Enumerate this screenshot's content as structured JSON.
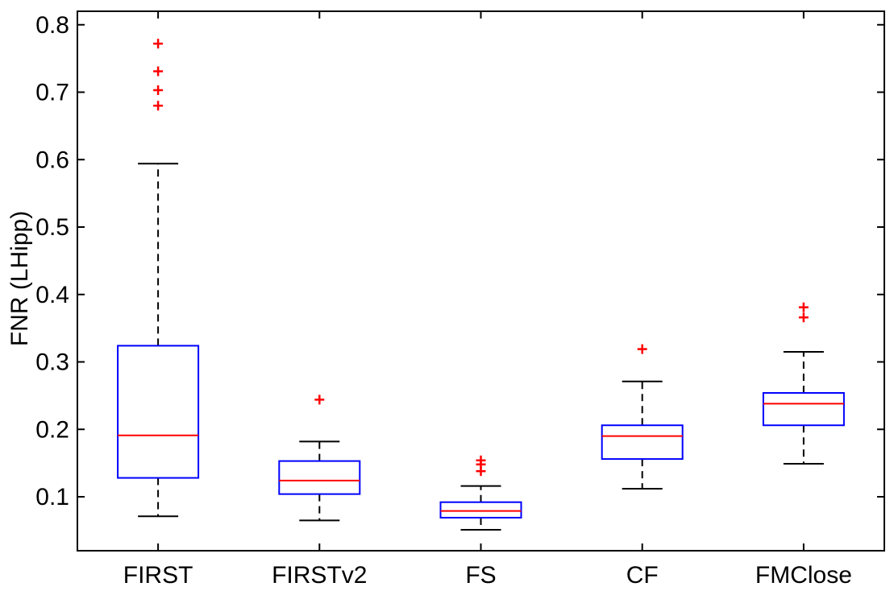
{
  "chart_data": {
    "type": "boxplot",
    "title": "",
    "xlabel": "",
    "ylabel": "FNR (LHipp)",
    "ylim": [
      0.02,
      0.82
    ],
    "yticks": [
      0.1,
      0.2,
      0.3,
      0.4,
      0.5,
      0.6,
      0.7,
      0.8
    ],
    "ytick_labels": [
      "0.1",
      "0.2",
      "0.3",
      "0.4",
      "0.5",
      "0.6",
      "0.7",
      "0.8"
    ],
    "grid": false,
    "categories": [
      "FIRST",
      "FIRSTv2",
      "FS",
      "CF",
      "FMClose"
    ],
    "boxes": [
      {
        "name": "FIRST",
        "whisker_low": 0.071,
        "q1": 0.128,
        "median": 0.191,
        "q3": 0.324,
        "whisker_high": 0.594,
        "outliers": [
          0.68,
          0.703,
          0.731,
          0.772
        ]
      },
      {
        "name": "FIRSTv2",
        "whisker_low": 0.065,
        "q1": 0.104,
        "median": 0.124,
        "q3": 0.153,
        "whisker_high": 0.182,
        "outliers": [
          0.244
        ]
      },
      {
        "name": "FS",
        "whisker_low": 0.051,
        "q1": 0.069,
        "median": 0.079,
        "q3": 0.092,
        "whisker_high": 0.116,
        "outliers": [
          0.138,
          0.148,
          0.154
        ]
      },
      {
        "name": "CF",
        "whisker_low": 0.112,
        "q1": 0.156,
        "median": 0.19,
        "q3": 0.206,
        "whisker_high": 0.271,
        "outliers": [
          0.319
        ]
      },
      {
        "name": "FMClose",
        "whisker_low": 0.149,
        "q1": 0.206,
        "median": 0.238,
        "q3": 0.254,
        "whisker_high": 0.315,
        "outliers": [
          0.366,
          0.381
        ]
      }
    ],
    "colors": {
      "box": "#0000ff",
      "median": "#ff0000",
      "whisker": "#000000",
      "outlier": "#ff0000",
      "axis": "#000000"
    }
  }
}
